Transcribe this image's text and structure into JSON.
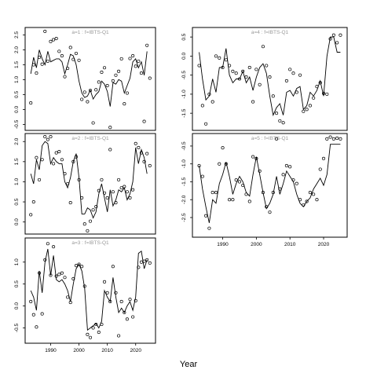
{
  "figure": {
    "xlabel": "Year"
  },
  "chart_data": [
    {
      "type": "line",
      "title": "a=1 : f=IBTS-Q1",
      "xlim": [
        1981,
        2027
      ],
      "ylim": [
        -0.7,
        2.75
      ],
      "y_ticks": [
        -0.5,
        0.0,
        0.5,
        1.0,
        1.5,
        2.0,
        2.5
      ],
      "y_tick_labels": [
        "-0.5",
        "0.0",
        "0.5",
        "1.0",
        "1.5",
        "2.0",
        "2.5"
      ],
      "x_ticks": [],
      "x_tick_labels": [],
      "series": [
        {
          "kind": "points",
          "x": [
            1983,
            1984,
            1985,
            1986,
            1987,
            1988,
            1989,
            1990,
            1991,
            1992,
            1993,
            1994,
            1995,
            1996,
            1997,
            1998,
            1999,
            2000,
            2001,
            2002,
            2003,
            2004,
            2005,
            2006,
            2007,
            2008,
            2009,
            2010,
            2011,
            2012,
            2013,
            2014,
            2015,
            2016,
            2017,
            2018,
            2019,
            2020,
            2021,
            2022,
            2023,
            2024,
            2025
          ],
          "y": [
            0.22,
            1.5,
            1.22,
            1.75,
            1.52,
            2.62,
            1.62,
            2.28,
            2.34,
            2.38,
            1.95,
            1.8,
            1.1,
            1.38,
            2.08,
            1.68,
            1.88,
            1.65,
            0.34,
            0.58,
            0.26,
            0.64,
            -0.45,
            0.66,
            0.92,
            1.25,
            1.4,
            0.8,
            -0.6,
            0.96,
            1.15,
            1.28,
            1.7,
            0.19,
            0.55,
            1.71,
            1.8,
            1.45,
            1.62,
            1.22,
            -0.4,
            2.15,
            1.05
          ]
        },
        {
          "kind": "line",
          "x": [
            1983,
            1984,
            1985,
            1986,
            1987,
            1988,
            1989,
            1990,
            1991,
            1992,
            1993,
            1994,
            1995,
            1996,
            1997,
            1998,
            1999,
            2000,
            2001,
            2002,
            2003,
            2004,
            2005,
            2006,
            2007,
            2008,
            2009,
            2010,
            2011,
            2012,
            2013,
            2014,
            2015,
            2016,
            2017,
            2018,
            2019,
            2020,
            2021,
            2022,
            2023,
            2024
          ],
          "y": [
            1.2,
            1.75,
            1.4,
            2.0,
            1.7,
            1.5,
            1.95,
            1.6,
            1.65,
            1.7,
            1.7,
            1.6,
            1.2,
            1.5,
            1.85,
            1.8,
            1.5,
            0.95,
            0.55,
            0.4,
            0.45,
            0.65,
            0.35,
            0.5,
            0.6,
            0.95,
            0.85,
            0.6,
            0.1,
            0.9,
            0.85,
            1.0,
            0.95,
            0.55,
            0.8,
            1.05,
            1.6,
            1.7,
            1.4,
            1.6,
            1.15,
            1.95
          ]
        }
      ]
    },
    {
      "type": "line",
      "title": "a=2 : f=IBTS-Q1",
      "xlim": [
        1981,
        2027
      ],
      "ylim": [
        -0.3,
        2.2
      ],
      "y_ticks": [
        0.0,
        0.5,
        1.0,
        1.5,
        2.0
      ],
      "y_tick_labels": [
        "0.0",
        "0.5",
        "1.0",
        "1.5",
        "2.0"
      ],
      "x_ticks": [],
      "x_tick_labels": [],
      "series": [
        {
          "kind": "points",
          "x": [
            1983,
            1984,
            1985,
            1986,
            1987,
            1988,
            1989,
            1990,
            1991,
            1992,
            1993,
            1994,
            1995,
            1996,
            1997,
            1998,
            1999,
            2000,
            2001,
            2002,
            2003,
            2004,
            2005,
            2006,
            2007,
            2008,
            2009,
            2010,
            2011,
            2012,
            2013,
            2014,
            2015,
            2016,
            2017,
            2018,
            2019,
            2020,
            2021,
            2022,
            2023,
            2024,
            2025
          ],
          "y": [
            0.18,
            0.5,
            1.6,
            1.05,
            1.55,
            2.12,
            2.05,
            2.12,
            1.45,
            1.72,
            1.75,
            1.55,
            1.2,
            0.95,
            0.48,
            1.5,
            1.62,
            1.05,
            0.6,
            -0.05,
            -0.22,
            0.02,
            0.3,
            0.38,
            0.78,
            1.05,
            0.72,
            0.6,
            1.8,
            0.75,
            0.48,
            1.05,
            0.85,
            0.88,
            0.75,
            0.6,
            0.8,
            1.95,
            1.85,
            1.72,
            1.5,
            1.7,
            1.4
          ]
        },
        {
          "kind": "line",
          "x": [
            1983,
            1984,
            1985,
            1986,
            1987,
            1988,
            1989,
            1990,
            1991,
            1992,
            1993,
            1994,
            1995,
            1996,
            1997,
            1998,
            1999,
            2000,
            2001,
            2002,
            2003,
            2004,
            2005,
            2006,
            2007,
            2008,
            2009,
            2010,
            2011,
            2012,
            2013,
            2014,
            2015,
            2016,
            2017,
            2018,
            2019,
            2020,
            2021,
            2022,
            2023,
            2024
          ],
          "y": [
            1.2,
            0.95,
            1.55,
            1.3,
            1.9,
            2.0,
            1.95,
            1.45,
            1.6,
            1.5,
            1.45,
            1.45,
            1.0,
            0.85,
            1.1,
            1.5,
            1.7,
            1.1,
            0.2,
            0.2,
            0.35,
            0.3,
            0.1,
            0.25,
            0.7,
            0.95,
            0.6,
            0.25,
            0.8,
            0.4,
            0.55,
            0.8,
            0.75,
            0.85,
            0.55,
            0.7,
            1.0,
            1.85,
            1.45,
            1.8,
            1.6,
            1.2
          ]
        }
      ]
    },
    {
      "type": "line",
      "title": "a=3 : f=IBTS-Q1",
      "xlim": [
        1981,
        2027
      ],
      "ylim": [
        -0.85,
        1.55
      ],
      "y_ticks": [
        -0.5,
        0.0,
        0.5,
        1.0
      ],
      "y_tick_labels": [
        "-0.5",
        "0.0",
        "0.5",
        "1.0"
      ],
      "x_ticks": [
        1990,
        2000,
        2010,
        2020
      ],
      "x_tick_labels": [
        "1990",
        "2000",
        "2010",
        "2020"
      ],
      "series": [
        {
          "kind": "points",
          "x": [
            1983,
            1984,
            1985,
            1986,
            1987,
            1988,
            1989,
            1990,
            1991,
            1992,
            1993,
            1994,
            1995,
            1996,
            1997,
            1998,
            1999,
            2000,
            2001,
            2002,
            2003,
            2004,
            2005,
            2006,
            2007,
            2008,
            2009,
            2010,
            2011,
            2012,
            2013,
            2014,
            2015,
            2016,
            2017,
            2018,
            2019,
            2020,
            2021,
            2022,
            2023,
            2024,
            2025
          ],
          "y": [
            0.1,
            -0.2,
            -0.48,
            0.75,
            -0.18,
            1.05,
            1.42,
            0.7,
            1.35,
            0.68,
            0.72,
            0.75,
            0.65,
            0.2,
            0.08,
            0.62,
            0.92,
            0.95,
            0.9,
            0.45,
            -0.65,
            -0.72,
            -0.5,
            -0.42,
            -0.6,
            -0.42,
            0.55,
            0.3,
            0.1,
            0.9,
            0.3,
            -0.68,
            0.1,
            -0.15,
            -0.3,
            0.15,
            -0.25,
            0.12,
            0.88,
            1.0,
            1.02,
            1.05,
            0.98
          ]
        },
        {
          "kind": "line",
          "x": [
            1983,
            1984,
            1985,
            1986,
            1987,
            1988,
            1989,
            1990,
            1991,
            1992,
            1993,
            1994,
            1995,
            1996,
            1997,
            1998,
            1999,
            2000,
            2001,
            2002,
            2003,
            2004,
            2005,
            2006,
            2007,
            2008,
            2009,
            2010,
            2011,
            2012,
            2013,
            2014,
            2015,
            2016,
            2017,
            2018,
            2019,
            2020,
            2021,
            2022,
            2023,
            2024
          ],
          "y": [
            0.35,
            0.2,
            -0.1,
            0.8,
            0.3,
            1.0,
            1.3,
            0.7,
            1.15,
            0.6,
            0.55,
            0.6,
            0.5,
            0.35,
            0.1,
            0.5,
            0.85,
            0.95,
            0.8,
            0.4,
            -0.55,
            -0.5,
            -0.45,
            -0.4,
            -0.5,
            -0.35,
            0.35,
            0.2,
            0.1,
            0.65,
            0.2,
            -0.15,
            -0.05,
            -0.15,
            0.0,
            0.1,
            -0.1,
            0.2,
            1.2,
            1.25,
            0.85,
            1.05
          ]
        }
      ]
    },
    {
      "type": "line",
      "title": "a=4 : f=IBTS-Q1",
      "xlim": [
        1981,
        2027
      ],
      "ylim": [
        -1.95,
        0.75
      ],
      "y_ticks": [
        -1.5,
        -1.0,
        -0.5,
        0.0,
        0.5
      ],
      "y_tick_labels": [
        "-1.5",
        "-1.0",
        "-0.5",
        "0.0",
        "0.5"
      ],
      "x_ticks": [],
      "x_tick_labels": [],
      "series": [
        {
          "kind": "points",
          "x": [
            1983,
            1984,
            1985,
            1986,
            1987,
            1988,
            1989,
            1990,
            1991,
            1992,
            1993,
            1994,
            1995,
            1996,
            1997,
            1998,
            1999,
            2000,
            2001,
            2002,
            2003,
            2004,
            2005,
            2006,
            2007,
            2008,
            2009,
            2010,
            2011,
            2012,
            2013,
            2014,
            2015,
            2016,
            2017,
            2018,
            2019,
            2020,
            2021,
            2022,
            2023,
            2024,
            2025
          ],
          "y": [
            -0.25,
            -1.3,
            -1.78,
            -1.0,
            -1.2,
            0.0,
            -0.05,
            -0.3,
            -0.1,
            -0.25,
            -0.4,
            -0.45,
            -0.6,
            -0.4,
            -0.55,
            -0.3,
            -1.2,
            -0.35,
            -0.75,
            0.25,
            -0.25,
            -0.55,
            -1.05,
            -1.5,
            -1.7,
            -1.75,
            -0.65,
            -0.35,
            -0.45,
            -0.95,
            -0.5,
            -1.45,
            -1.4,
            -1.3,
            -1.1,
            -0.8,
            -0.7,
            -0.98,
            -1.0,
            0.45,
            0.55,
            0.35,
            0.55
          ]
        },
        {
          "kind": "line",
          "x": [
            1983,
            1984,
            1985,
            1986,
            1987,
            1988,
            1989,
            1990,
            1991,
            1992,
            1993,
            1994,
            1995,
            1996,
            1997,
            1998,
            1999,
            2000,
            2001,
            2002,
            2003,
            2004,
            2005,
            2006,
            2007,
            2008,
            2009,
            2010,
            2011,
            2012,
            2013,
            2014,
            2015,
            2016,
            2017,
            2018,
            2019,
            2020,
            2021,
            2022,
            2023,
            2024,
            2025
          ],
          "y": [
            0.1,
            -0.6,
            -1.15,
            -1.05,
            -0.6,
            -0.95,
            -0.3,
            -0.3,
            0.2,
            -0.5,
            -0.7,
            -0.6,
            -0.6,
            -0.4,
            -0.7,
            -0.55,
            -0.9,
            -0.55,
            -0.3,
            -0.2,
            -0.45,
            -1.05,
            -1.55,
            -1.35,
            -1.25,
            -1.55,
            -0.95,
            -0.9,
            -1.05,
            -0.85,
            -0.8,
            -1.4,
            -1.3,
            -0.95,
            -1.05,
            -0.9,
            -0.65,
            -1.05,
            0.0,
            0.5,
            0.5,
            0.1,
            0.1
          ]
        }
      ]
    },
    {
      "type": "line",
      "title": "a=5 : f=IBTS-Q1",
      "xlim": [
        1981,
        2027
      ],
      "ylim": [
        -3.05,
        -0.15
      ],
      "y_ticks": [
        -2.5,
        -2.0,
        -1.5,
        -1.0,
        -0.5
      ],
      "y_tick_labels": [
        "-2.5",
        "-2.0",
        "-1.5",
        "-1.0",
        "-0.5"
      ],
      "x_ticks": [
        1990,
        2000,
        2010,
        2020
      ],
      "x_tick_labels": [
        "1990",
        "2000",
        "2010",
        "2020"
      ],
      "series": [
        {
          "kind": "points",
          "x": [
            1983,
            1984,
            1985,
            1986,
            1987,
            1988,
            1989,
            1990,
            1991,
            1992,
            1993,
            1994,
            1995,
            1996,
            1997,
            1998,
            1999,
            2000,
            2001,
            2002,
            2003,
            2004,
            2005,
            2006,
            2007,
            2008,
            2009,
            2010,
            2011,
            2012,
            2013,
            2014,
            2015,
            2016,
            2017,
            2018,
            2019,
            2020,
            2021,
            2022,
            2023,
            2024,
            2025
          ],
          "y": [
            -1.05,
            -1.35,
            -2.45,
            -2.8,
            -1.8,
            -1.8,
            -1.0,
            -0.55,
            -1.0,
            -2.0,
            -2.0,
            -1.45,
            -1.5,
            -1.6,
            -1.85,
            -2.05,
            -0.8,
            -0.85,
            -1.2,
            -1.8,
            -2.2,
            -2.35,
            -1.8,
            -0.3,
            -1.7,
            -1.3,
            -1.05,
            -1.08,
            -1.45,
            -1.55,
            -2.0,
            -2.15,
            -2.05,
            -1.8,
            -1.85,
            -2.0,
            -1.15,
            -0.85,
            -0.3,
            -0.25,
            -0.3,
            -0.28,
            -0.3
          ]
        },
        {
          "kind": "line",
          "x": [
            1983,
            1984,
            1985,
            1986,
            1987,
            1988,
            1989,
            1990,
            1991,
            1992,
            1993,
            1994,
            1995,
            1996,
            1997,
            1998,
            1999,
            2000,
            2001,
            2002,
            2003,
            2004,
            2005,
            2006,
            2007,
            2008,
            2009,
            2010,
            2011,
            2012,
            2013,
            2014,
            2015,
            2016,
            2017,
            2018,
            2019,
            2020,
            2021,
            2022,
            2023,
            2024,
            2025
          ],
          "y": [
            -1.05,
            -1.7,
            -2.2,
            -2.65,
            -2.0,
            -2.1,
            -1.55,
            -1.3,
            -0.95,
            -1.35,
            -1.85,
            -1.55,
            -1.35,
            -1.5,
            -1.8,
            -1.9,
            -1.3,
            -0.8,
            -1.3,
            -1.8,
            -2.25,
            -2.1,
            -1.85,
            -1.35,
            -1.85,
            -1.55,
            -1.2,
            -1.35,
            -1.5,
            -1.85,
            -2.1,
            -2.2,
            -2.05,
            -1.95,
            -1.7,
            -1.55,
            -1.4,
            -1.6,
            -1.3,
            -0.45,
            -0.45,
            -0.45,
            -0.45
          ]
        }
      ]
    }
  ]
}
